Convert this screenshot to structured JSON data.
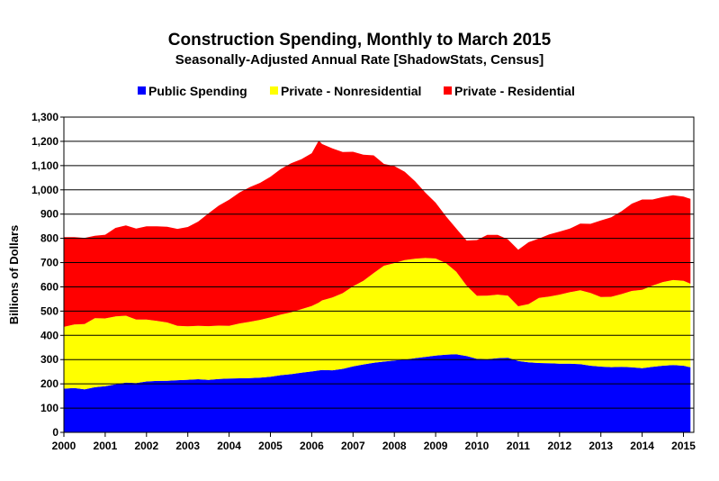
{
  "chart_data": {
    "type": "area",
    "stacked": true,
    "title": "Construction Spending, Monthly to March 2015",
    "subtitle": "Seasonally-Adjusted Annual Rate [ShadowStats, Census]",
    "xlabel": "",
    "ylabel": "Billions of Dollars",
    "xlim": [
      2000.0,
      2015.25
    ],
    "ylim": [
      0,
      1300
    ],
    "y_ticks": [
      "0",
      "100",
      "200",
      "300",
      "400",
      "500",
      "600",
      "700",
      "800",
      "900",
      "1,000",
      "1,100",
      "1,200",
      "1,300"
    ],
    "x_ticks": [
      "2000",
      "2001",
      "2002",
      "2003",
      "2004",
      "2005",
      "2006",
      "2007",
      "2008",
      "2009",
      "2010",
      "2011",
      "2012",
      "2013",
      "2014",
      "2015"
    ],
    "grid": true,
    "legend": "top",
    "x": [
      2000.0,
      2000.25,
      2000.5,
      2000.75,
      2001.0,
      2001.25,
      2001.5,
      2001.75,
      2002.0,
      2002.25,
      2002.5,
      2002.75,
      2003.0,
      2003.25,
      2003.5,
      2003.75,
      2004.0,
      2004.25,
      2004.5,
      2004.75,
      2005.0,
      2005.25,
      2005.5,
      2005.75,
      2006.0,
      2006.17,
      2006.25,
      2006.5,
      2006.75,
      2007.0,
      2007.25,
      2007.5,
      2007.75,
      2008.0,
      2008.25,
      2008.5,
      2008.75,
      2009.0,
      2009.25,
      2009.5,
      2009.75,
      2010.0,
      2010.25,
      2010.5,
      2010.75,
      2011.0,
      2011.25,
      2011.5,
      2011.75,
      2012.0,
      2012.25,
      2012.5,
      2012.75,
      2013.0,
      2013.25,
      2013.5,
      2013.75,
      2014.0,
      2014.25,
      2014.5,
      2014.75,
      2015.0,
      2015.17
    ],
    "series": [
      {
        "name": "Public Spending",
        "color": "#0000ff",
        "values": [
          180,
          183,
          177,
          186,
          190,
          198,
          205,
          203,
          210,
          212,
          213,
          215,
          217,
          219,
          216,
          220,
          222,
          223,
          224,
          226,
          229,
          236,
          240,
          246,
          251,
          255,
          257,
          256,
          262,
          272,
          280,
          287,
          292,
          296,
          300,
          306,
          311,
          317,
          320,
          322,
          315,
          303,
          302,
          306,
          308,
          294,
          289,
          286,
          285,
          283,
          283,
          281,
          275,
          271,
          269,
          270,
          268,
          265,
          270,
          275,
          278,
          275,
          268
        ]
      },
      {
        "name": "Private - Nonresidential",
        "color": "#ffff00",
        "values": [
          255,
          262,
          270,
          285,
          280,
          280,
          276,
          262,
          255,
          248,
          240,
          224,
          220,
          220,
          222,
          220,
          217,
          226,
          232,
          238,
          245,
          250,
          255,
          262,
          270,
          280,
          287,
          300,
          312,
          330,
          345,
          370,
          395,
          402,
          410,
          410,
          408,
          400,
          378,
          340,
          290,
          260,
          262,
          262,
          256,
          226,
          240,
          268,
          275,
          285,
          295,
          305,
          300,
          287,
          290,
          300,
          315,
          323,
          335,
          345,
          350,
          350,
          345
        ]
      },
      {
        "name": "Private - Residential",
        "color": "#ff0000",
        "values": [
          370,
          360,
          355,
          340,
          345,
          365,
          372,
          375,
          385,
          390,
          395,
          400,
          410,
          430,
          465,
          495,
          520,
          540,
          555,
          565,
          580,
          600,
          615,
          618,
          630,
          668,
          645,
          615,
          582,
          555,
          520,
          485,
          420,
          400,
          365,
          320,
          270,
          230,
          193,
          178,
          186,
          230,
          250,
          246,
          232,
          233,
          255,
          245,
          256,
          260,
          262,
          275,
          285,
          316,
          328,
          342,
          360,
          372,
          355,
          350,
          350,
          347,
          350
        ]
      }
    ]
  }
}
